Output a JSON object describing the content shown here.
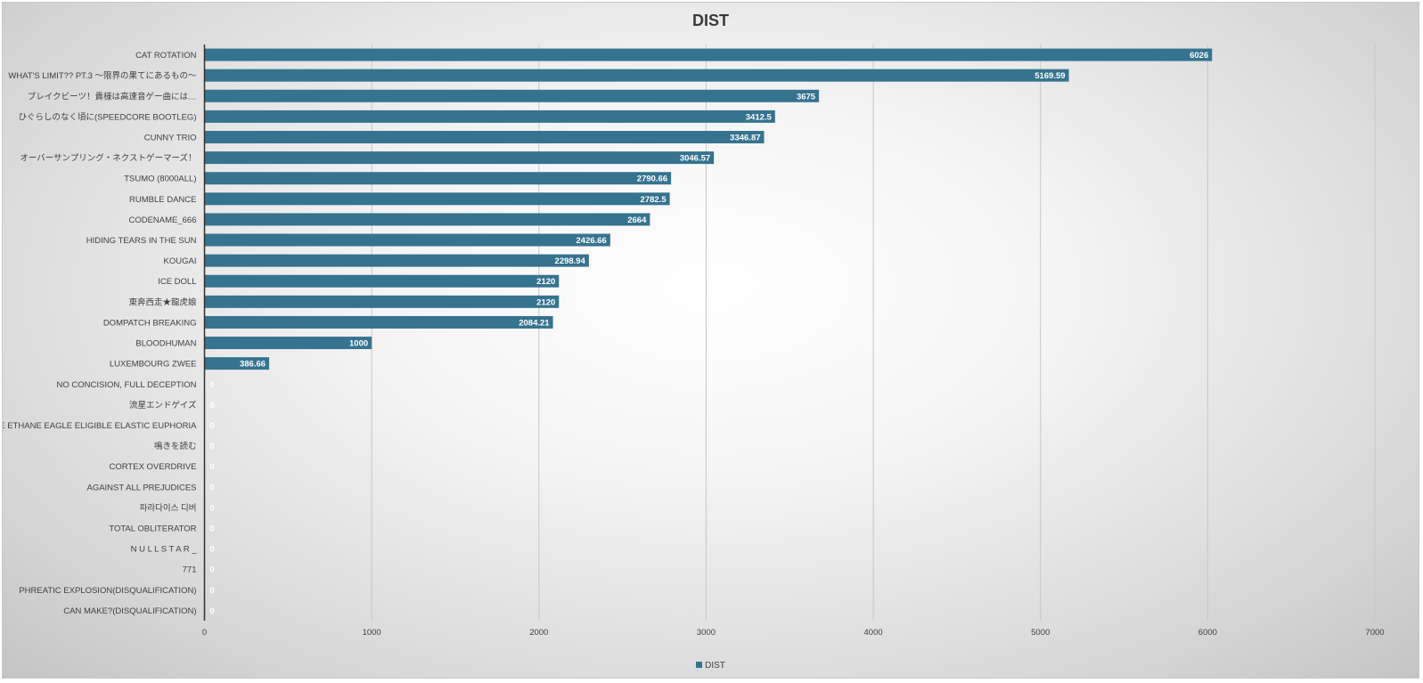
{
  "chart_data": {
    "type": "bar",
    "orientation": "horizontal",
    "title": "DIST",
    "xlabel": "",
    "ylabel": "",
    "xlim": [
      0,
      7000
    ],
    "xticks": [
      0,
      1000,
      2000,
      3000,
      4000,
      5000,
      6000,
      7000
    ],
    "grid": true,
    "legend_position": "bottom",
    "bar_color": "#36738f",
    "categories": [
      "CAT ROTATION",
      "WHAT'S LIMIT?? PT.3 〜限界の果てにあるもの〜",
      "ブレイクビーツ！貴様は高速音ゲー曲には…",
      "ひぐらしのなく頃に(SPEEDCORE BOOTLEG)",
      "CUNNY TRIO",
      "オーバーサンプリング・ネクストゲーマーズ！",
      "TSUMO (8000ALL)",
      "RUMBLE DANCE",
      "CODENAME_666",
      "HIDING TEARS IN THE SUN",
      "KOUGAI",
      "ICE DOLL",
      "東奔西走★龍虎娘",
      "DOMPATCH BREAKING",
      "BLOODHUMAN",
      "LUXEMBOURG ZWEE",
      "NO CONCISION, FULL DECEPTION",
      "流星エンドゲイズ",
      "EDIBLE ETHANE EAGLE ELIGIBLE ELASTIC EUPHORIA",
      "鳴きを読む",
      "CORTEX OVERDRIVE",
      "AGAINST ALL PREJUDICES",
      "파라다이스 디버",
      "TOTAL OBLITERATOR",
      "N U L L S T A R _",
      "771",
      "PHREATIC EXPLOSION(DISQUALIFICATION)",
      "CAN MAKE?(DISQUALIFICATION)"
    ],
    "series": [
      {
        "name": "DIST",
        "values": [
          6026,
          5169.59,
          3675,
          3412.5,
          3346.87,
          3046.57,
          2790.66,
          2782.5,
          2664,
          2426.66,
          2298.94,
          2120,
          2120,
          2084.21,
          1000,
          386.66,
          0,
          0,
          0,
          0,
          0,
          0,
          0,
          0,
          0,
          0,
          0,
          0
        ],
        "labels": [
          "6026",
          "5169.59",
          "3675",
          "3412.5",
          "3346.87",
          "3046.57",
          "2790.66",
          "2782.5",
          "2664",
          "2426.66",
          "2298.94",
          "2120",
          "2120",
          "2084.21",
          "1000",
          "386.66",
          "0",
          "0",
          "0",
          "0",
          "0",
          "0",
          "0",
          "0",
          "0",
          "0",
          "0",
          "0"
        ]
      }
    ]
  }
}
